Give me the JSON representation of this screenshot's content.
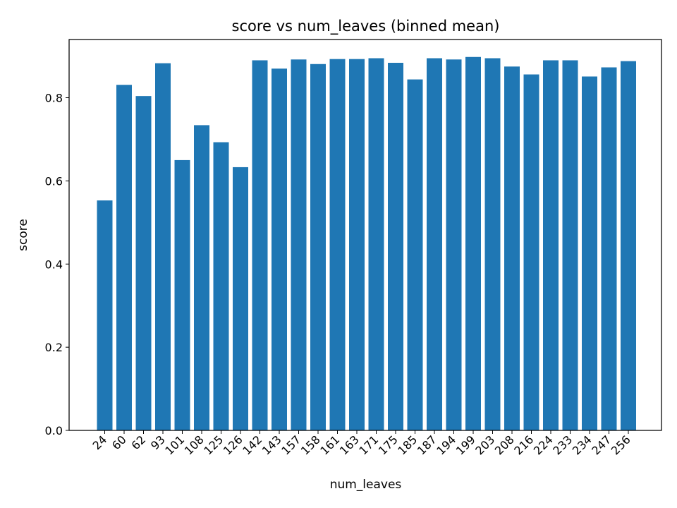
{
  "chart_data": {
    "type": "bar",
    "title": "score vs num_leaves (binned mean)",
    "xlabel": "num_leaves",
    "ylabel": "score",
    "categories": [
      "24",
      "60",
      "62",
      "93",
      "101",
      "108",
      "125",
      "126",
      "142",
      "143",
      "157",
      "158",
      "161",
      "163",
      "171",
      "175",
      "185",
      "187",
      "194",
      "199",
      "203",
      "208",
      "216",
      "224",
      "233",
      "234",
      "247",
      "256"
    ],
    "values": [
      0.553,
      0.831,
      0.804,
      0.883,
      0.65,
      0.734,
      0.693,
      0.633,
      0.89,
      0.87,
      0.892,
      0.881,
      0.893,
      0.893,
      0.895,
      0.884,
      0.844,
      0.895,
      0.892,
      0.898,
      0.895,
      0.875,
      0.856,
      0.89,
      0.89,
      0.851,
      0.873,
      0.888
    ],
    "ylim": [
      0,
      0.94
    ],
    "yticks": [
      0.0,
      0.2,
      0.4,
      0.6,
      0.8
    ],
    "ytick_labels": [
      "0.0",
      "0.2",
      "0.4",
      "0.6",
      "0.8"
    ],
    "bar_color": "#1f77b4",
    "grid": false,
    "legend": "none"
  }
}
